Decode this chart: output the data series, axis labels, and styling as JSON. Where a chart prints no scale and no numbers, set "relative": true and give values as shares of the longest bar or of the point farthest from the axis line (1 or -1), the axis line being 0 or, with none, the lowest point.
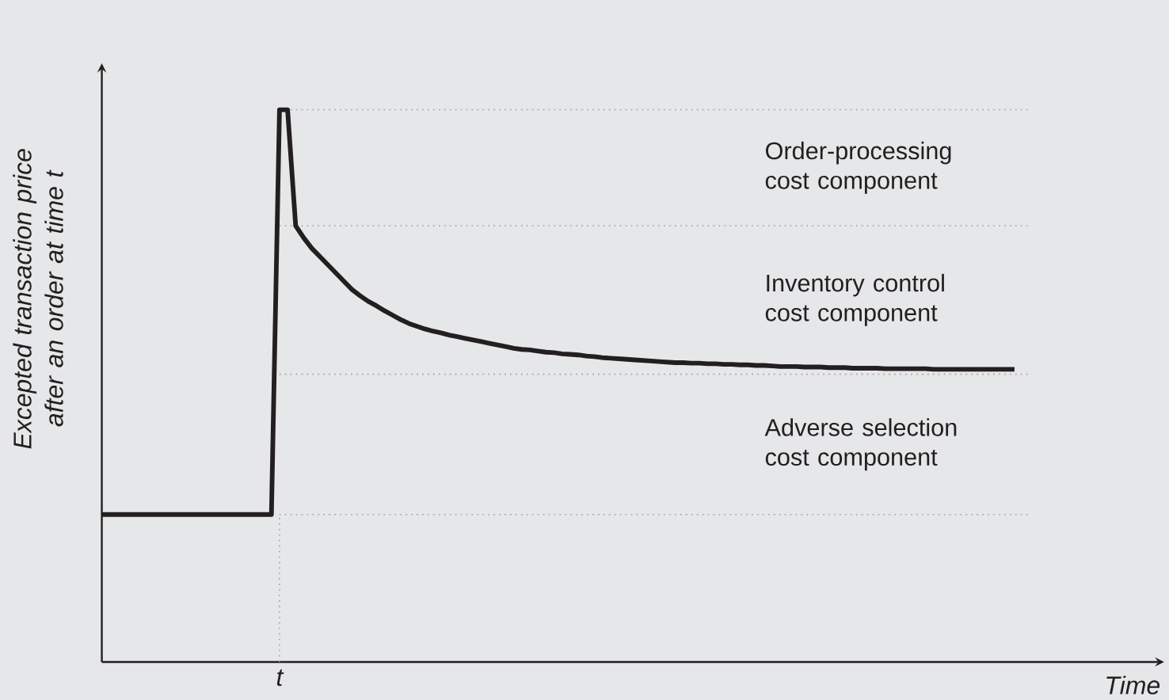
{
  "chart_data": {
    "type": "line",
    "relative": true,
    "xlabel": "Time",
    "ylabel": "Excepted transaction price after an order at time t",
    "categories": [
      null,
      null,
      null,
      null,
      null,
      null,
      null,
      null,
      null,
      null,
      null,
      null,
      null,
      null,
      null,
      null,
      null,
      null,
      null,
      null,
      null,
      null,
      null,
      null,
      null,
      null,
      null,
      null,
      null,
      null,
      null,
      null,
      null,
      null,
      null,
      null,
      null,
      null,
      null,
      null,
      null,
      null,
      null,
      null,
      null,
      null,
      null,
      null,
      null,
      null,
      null,
      null,
      null,
      null,
      null,
      null,
      null,
      null,
      null,
      null,
      null,
      null,
      null,
      null,
      null,
      null,
      null,
      null,
      null,
      null,
      null,
      null,
      null,
      null,
      null,
      null,
      null,
      null,
      null,
      null,
      null,
      null,
      null,
      null,
      null,
      null,
      null,
      null,
      null,
      null,
      null,
      null,
      null,
      null,
      null,
      null,
      null,
      null,
      null,
      null,
      null,
      null,
      null,
      null,
      null,
      null,
      null,
      null,
      null,
      null,
      null,
      null,
      null,
      null
    ],
    "values": [
      0.267,
      0.267,
      0.267,
      0.267,
      0.267,
      0.267,
      0.267,
      0.267,
      0.267,
      0.267,
      0.267,
      0.267,
      0.267,
      0.267,
      0.267,
      0.267,
      0.267,
      0.267,
      0.267,
      0.267,
      0.267,
      0.267,
      1,
      1,
      0.79,
      0.768,
      0.749,
      0.734,
      0.719,
      0.704,
      0.689,
      0.674,
      0.663,
      0.653,
      0.645,
      0.636,
      0.628,
      0.62,
      0.613,
      0.608,
      0.603,
      0.599,
      0.596,
      0.592,
      0.589,
      0.586,
      0.583,
      0.58,
      0.577,
      0.574,
      0.571,
      0.568,
      0.566,
      0.565,
      0.563,
      0.561,
      0.56,
      0.558,
      0.557,
      0.556,
      0.554,
      0.553,
      0.551,
      0.55,
      0.549,
      0.548,
      0.547,
      0.546,
      0.545,
      0.544,
      0.543,
      0.542,
      0.542,
      0.541,
      0.541,
      0.54,
      0.54,
      0.539,
      0.539,
      0.538,
      0.538,
      0.537,
      0.537,
      0.536,
      0.535,
      0.535,
      0.535,
      0.534,
      0.534,
      0.534,
      0.533,
      0.533,
      0.533,
      0.532,
      0.532,
      0.532,
      0.532,
      0.531,
      0.531,
      0.531,
      0.531,
      0.531,
      0.531,
      0.53,
      0.53,
      0.53,
      0.53,
      0.53,
      0.53,
      0.53,
      0.53,
      0.53,
      0.53,
      0.53
    ],
    "color": "#231f20",
    "marker": "none",
    "line_style": "solid",
    "ref_lines": [
      {
        "axis": "y",
        "value": 1,
        "color": "#9d9fa2",
        "line_style": "dotted"
      },
      {
        "axis": "y",
        "value": 0.79,
        "color": "#9d9fa2",
        "line_style": "dotted"
      },
      {
        "axis": "y",
        "value": 0.521,
        "color": "#9d9fa2",
        "line_style": "dotted"
      },
      {
        "axis": "y",
        "value": 0.267,
        "color": "#9d9fa2",
        "line_style": "dotted"
      }
    ],
    "annotations": [
      "t",
      "Order-processing cost component",
      "Inventory control cost component",
      "Adverse selection cost component"
    ]
  }
}
